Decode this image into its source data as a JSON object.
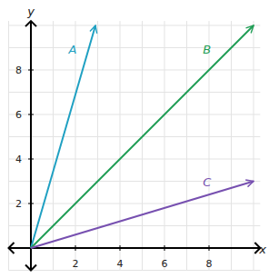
{
  "chart_data": {
    "type": "line",
    "x_label": "x",
    "y_label": "y",
    "xlim": [
      -1,
      10.3
    ],
    "ylim": [
      -1,
      10.2
    ],
    "xticks": [
      2,
      4,
      6,
      8
    ],
    "yticks": [
      2,
      4,
      6,
      8
    ],
    "grid": true,
    "marker": "arrow",
    "series": [
      {
        "name": "A",
        "color": "#1fa0c2",
        "x": [
          0,
          2.9
        ],
        "values": [
          0,
          10
        ]
      },
      {
        "name": "B",
        "color": "#1f9d55",
        "x": [
          0,
          10
        ],
        "values": [
          0,
          10
        ]
      },
      {
        "name": "C",
        "color": "#7750b0",
        "x": [
          0,
          10
        ],
        "values": [
          0,
          3
        ]
      }
    ]
  }
}
